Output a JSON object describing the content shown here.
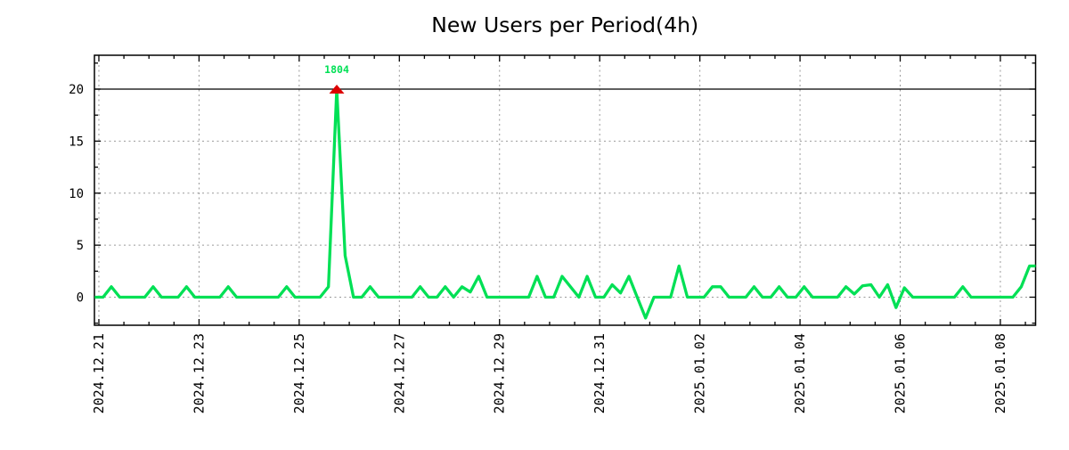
{
  "title": "New Users per Period(4h)",
  "chart_data": {
    "type": "line",
    "title": "New Users per Period(4h)",
    "period": "4h",
    "series": [
      {
        "name": "new-users",
        "color": "#00e055",
        "values": [
          0,
          0,
          1,
          0,
          0,
          0,
          0,
          1,
          0,
          0,
          0,
          1,
          0,
          0,
          0,
          0,
          1,
          0,
          0,
          0,
          0,
          0,
          0,
          1,
          0,
          0,
          0,
          0,
          1,
          1804,
          4,
          0,
          0,
          1,
          0,
          0,
          0,
          0,
          0,
          1,
          0,
          0,
          1,
          0,
          1,
          0.5,
          2,
          0,
          0,
          0,
          0,
          0,
          0,
          2,
          0,
          0,
          2,
          1,
          0,
          2,
          0,
          0,
          1.2,
          0.4,
          2,
          0,
          -2,
          0,
          0,
          0,
          3,
          0,
          0,
          0,
          1,
          1,
          0,
          0,
          0,
          1,
          0,
          0,
          1,
          0,
          0,
          1,
          0,
          0,
          0,
          0,
          1,
          0.3,
          1.1,
          1.2,
          0,
          1.2,
          -1,
          0.9,
          0,
          0,
          0,
          0,
          0,
          0,
          1,
          0,
          0,
          0,
          0,
          0,
          0,
          1,
          3,
          3
        ]
      }
    ],
    "x_tick_labels": [
      "2024.12.21",
      "2024.12.23",
      "2024.12.25",
      "2024.12.27",
      "2024.12.29",
      "2024.12.31",
      "2025.01.02",
      "2025.01.04",
      "2025.01.06",
      "2025.01.08"
    ],
    "x_major_every_points": 12,
    "x_first_major_at_point": 0.5,
    "x_minor_every_points": 3,
    "y_tick_labels": [
      "0",
      "5",
      "10",
      "15",
      "20"
    ],
    "y_ticks": [
      0,
      5,
      10,
      15,
      20
    ],
    "y_minor_step": 2.5,
    "ylim": [
      -2.7,
      23.25
    ],
    "xlim_points": [
      0,
      112.7
    ],
    "clip_value_at": 20,
    "grid": "dotted",
    "threshold_line": {
      "y": 20,
      "color": "#000000"
    },
    "annotation": {
      "text": "1804",
      "point_index": 29,
      "value": 1804,
      "marker": "triangle-up-filled",
      "marker_color": "#dd0000",
      "text_color": "#00e055"
    }
  },
  "colors": {
    "line": "#00e055",
    "marker": "#dd0000",
    "grid": "#999999",
    "axis": "#000000",
    "background": "#ffffff"
  }
}
